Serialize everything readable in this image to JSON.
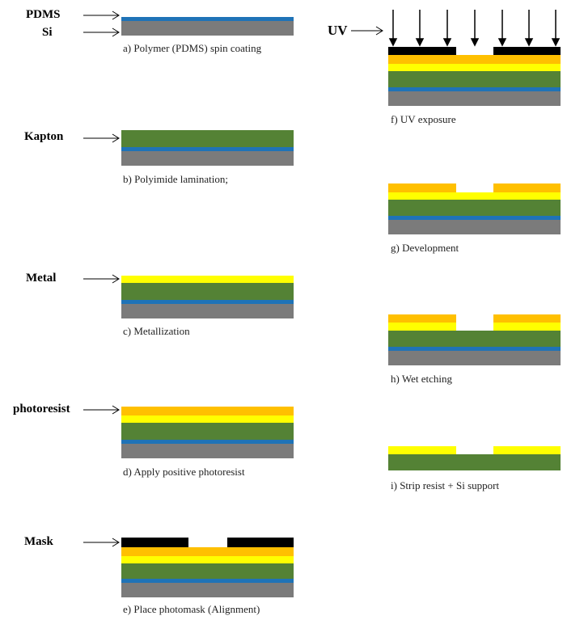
{
  "labels": {
    "pdms": "PDMS",
    "si": "Si",
    "kapton": "Kapton",
    "metal": "Metal",
    "photoresist": "photoresist",
    "mask": "Mask",
    "uv": "UV"
  },
  "steps": {
    "a": "a) Polymer (PDMS) spin coating",
    "b": "b) Polyimide lamination;",
    "c": "c) Metallization",
    "d": "d) Apply  positive photoresist",
    "e": "e) Place photomask (Alignment)",
    "f": "f) UV exposure",
    "g": "g) Development",
    "h": "h) Wet etching",
    "i": "i) Strip resist + Si support"
  },
  "colors": {
    "pdms": "#1f73b7",
    "si": "#7b7b7b",
    "kapton": "#548235",
    "metal": "#ffff00",
    "photoresist": "#ffc000",
    "mask": "#000000"
  }
}
